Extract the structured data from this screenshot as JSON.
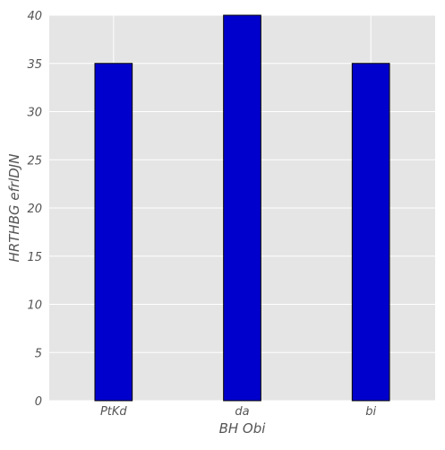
{
  "chart_data": {
    "type": "bar",
    "categories": [
      "PtKd",
      "da",
      "bi"
    ],
    "values": [
      35,
      40,
      35
    ],
    "title": "",
    "xlabel": "BH Obi",
    "ylabel": "HRTHBG efrlDJN",
    "ylim": [
      0,
      40
    ],
    "yticks": [
      0,
      5,
      10,
      15,
      20,
      25,
      30,
      35,
      40
    ],
    "grid": true,
    "bar_color": "#0000cd",
    "bar_edge_color": "#000000",
    "background_color": "#e5e5e5",
    "grid_color": "#ffffff"
  }
}
